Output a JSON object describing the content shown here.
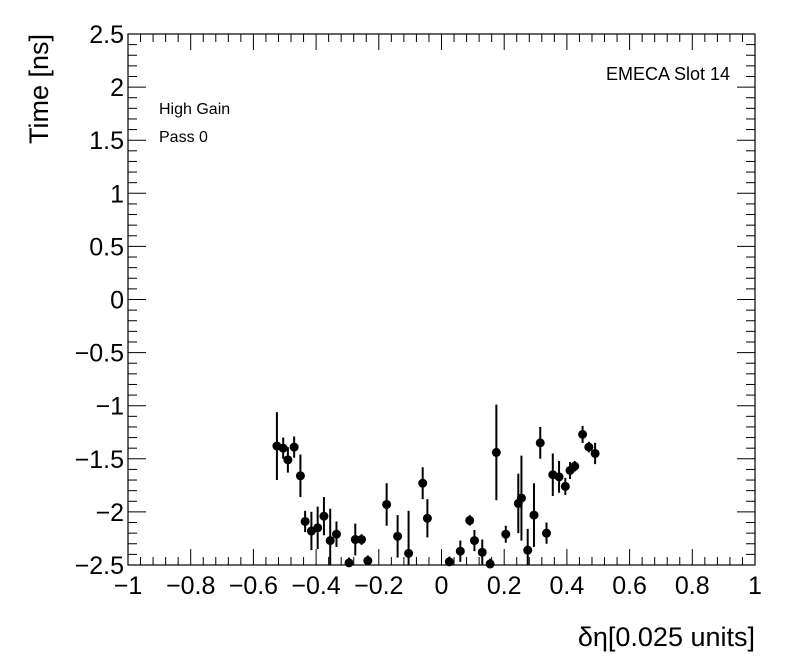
{
  "chart_data": {
    "type": "scatter",
    "xlabel": "δη[0.025 units]",
    "ylabel": "Time [ns]",
    "xlim": [
      -1,
      1
    ],
    "ylim": [
      -2.5,
      2.5
    ],
    "x_ticks": [
      "−1",
      "−0.8",
      "−0.6",
      "−0.4",
      "−0.2",
      "0",
      "0.2",
      "0.4",
      "0.6",
      "0.8",
      "1"
    ],
    "y_ticks": [
      "−2.5",
      "−2",
      "−1.5",
      "−1",
      "−0.5",
      "0",
      "0.5",
      "1",
      "1.5",
      "2",
      "2.5"
    ],
    "grid": false,
    "annotations": {
      "slot": "EMECA Slot 14",
      "gain": "High Gain",
      "pass": "Pass 0"
    },
    "points": [
      {
        "x": -0.525,
        "y": -1.38,
        "err": 0.32
      },
      {
        "x": -0.505,
        "y": -1.4,
        "err": 0.1
      },
      {
        "x": -0.49,
        "y": -1.51,
        "err": 0.12
      },
      {
        "x": -0.47,
        "y": -1.39,
        "err": 0.1
      },
      {
        "x": -0.45,
        "y": -1.66,
        "err": 0.2
      },
      {
        "x": -0.435,
        "y": -2.09,
        "err": 0.1
      },
      {
        "x": -0.415,
        "y": -2.18,
        "err": 0.18
      },
      {
        "x": -0.395,
        "y": -2.15,
        "err": 0.2
      },
      {
        "x": -0.375,
        "y": -2.04,
        "err": 0.18
      },
      {
        "x": -0.355,
        "y": -2.27,
        "err": 0.3
      },
      {
        "x": -0.335,
        "y": -2.21,
        "err": 0.12
      },
      {
        "x": -0.295,
        "y": -2.48,
        "err": 0.05
      },
      {
        "x": -0.275,
        "y": -2.26,
        "err": 0.15
      },
      {
        "x": -0.255,
        "y": -2.26,
        "err": 0.05
      },
      {
        "x": -0.235,
        "y": -2.46,
        "err": 0.05
      },
      {
        "x": -0.175,
        "y": -1.93,
        "err": 0.2
      },
      {
        "x": -0.14,
        "y": -2.23,
        "err": 0.2
      },
      {
        "x": -0.105,
        "y": -2.39,
        "err": 0.4
      },
      {
        "x": -0.06,
        "y": -1.73,
        "err": 0.15
      },
      {
        "x": -0.045,
        "y": -2.06,
        "err": 0.18
      },
      {
        "x": 0.025,
        "y": -2.47,
        "err": 0.05
      },
      {
        "x": 0.06,
        "y": -2.37,
        "err": 0.1
      },
      {
        "x": 0.09,
        "y": -2.08,
        "err": 0.05
      },
      {
        "x": 0.105,
        "y": -2.27,
        "err": 0.1
      },
      {
        "x": 0.13,
        "y": -2.38,
        "err": 0.12
      },
      {
        "x": 0.155,
        "y": -2.49,
        "err": 0.05
      },
      {
        "x": 0.175,
        "y": -1.44,
        "err": 0.45
      },
      {
        "x": 0.205,
        "y": -2.21,
        "err": 0.08
      },
      {
        "x": 0.245,
        "y": -1.92,
        "err": 0.28
      },
      {
        "x": 0.255,
        "y": -1.87,
        "err": 0.4
      },
      {
        "x": 0.275,
        "y": -2.36,
        "err": 0.2
      },
      {
        "x": 0.295,
        "y": -2.03,
        "err": 0.3
      },
      {
        "x": 0.315,
        "y": -1.35,
        "err": 0.15
      },
      {
        "x": 0.335,
        "y": -2.2,
        "err": 0.1
      },
      {
        "x": 0.355,
        "y": -1.65,
        "err": 0.2
      },
      {
        "x": 0.375,
        "y": -1.67,
        "err": 0.15
      },
      {
        "x": 0.395,
        "y": -1.76,
        "err": 0.08
      },
      {
        "x": 0.41,
        "y": -1.61,
        "err": 0.08
      },
      {
        "x": 0.425,
        "y": -1.57,
        "err": 0.05
      },
      {
        "x": 0.45,
        "y": -1.27,
        "err": 0.08
      },
      {
        "x": 0.47,
        "y": -1.39,
        "err": 0.05
      },
      {
        "x": 0.49,
        "y": -1.45,
        "err": 0.1
      }
    ]
  }
}
